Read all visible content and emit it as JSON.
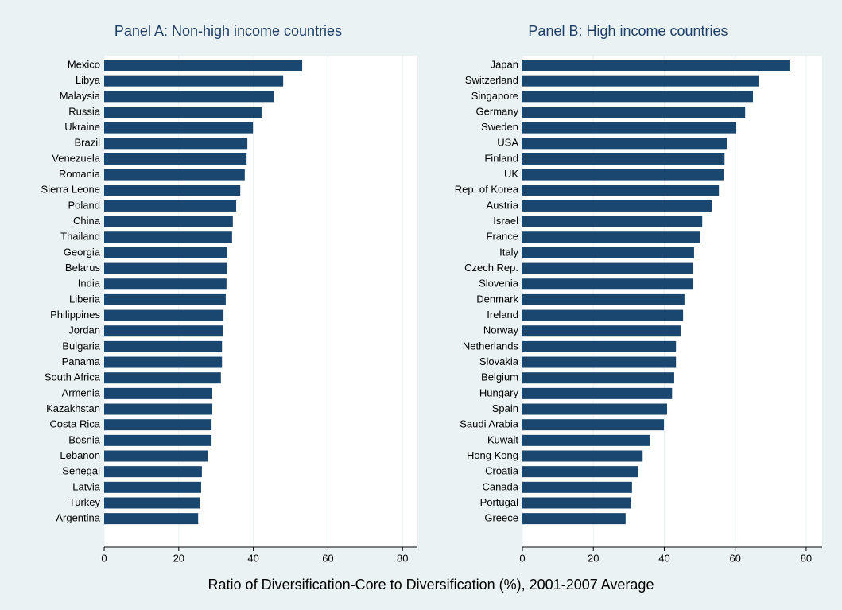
{
  "chart_data": [
    {
      "type": "bar",
      "orientation": "horizontal",
      "title": "Panel A: Non-high income countries",
      "categories": [
        "Mexico",
        "Libya",
        "Malaysia",
        "Russia",
        "Ukraine",
        "Brazil",
        "Venezuela",
        "Romania",
        "Sierra Leone",
        "Poland",
        "China",
        "Thailand",
        "Georgia",
        "Belarus",
        "India",
        "Liberia",
        "Philippines",
        "Jordan",
        "Bulgaria",
        "Panama",
        "South Africa",
        "Armenia",
        "Kazakhstan",
        "Costa Rica",
        "Bosnia",
        "Lebanon",
        "Senegal",
        "Latvia",
        "Turkey",
        "Argentina"
      ],
      "values": [
        53.1,
        48.0,
        45.6,
        42.2,
        39.9,
        38.4,
        38.2,
        37.7,
        36.5,
        35.4,
        34.5,
        34.3,
        33.0,
        33.0,
        32.8,
        32.6,
        32.0,
        31.8,
        31.6,
        31.6,
        31.3,
        29.0,
        29.0,
        28.8,
        28.8,
        27.9,
        26.2,
        26.0,
        25.8,
        25.2
      ],
      "color": "#1a476f",
      "xlim": [
        0,
        84
      ],
      "xticks": [
        0,
        20,
        40,
        60,
        80
      ],
      "grid": true
    },
    {
      "type": "bar",
      "orientation": "horizontal",
      "title": "Panel B: High income countries",
      "categories": [
        "Japan",
        "Switzerland",
        "Singapore",
        "Germany",
        "Sweden",
        "USA",
        "Finland",
        "UK",
        "Rep. of Korea",
        "Austria",
        "Israel",
        "France",
        "Italy",
        "Czech Rep.",
        "Slovenia",
        "Denmark",
        "Ireland",
        "Norway",
        "Netherlands",
        "Slovakia",
        "Belgium",
        "Hungary",
        "Spain",
        "Saudi Arabia",
        "Kuwait",
        "Hong Kong",
        "Croatia",
        "Canada",
        "Portugal",
        "Greece"
      ],
      "values": [
        75.3,
        66.6,
        65.0,
        62.8,
        60.3,
        57.6,
        57.0,
        56.7,
        55.4,
        53.4,
        50.7,
        50.2,
        48.4,
        48.2,
        48.2,
        45.7,
        45.3,
        44.6,
        43.3,
        43.3,
        42.8,
        42.2,
        40.8,
        39.9,
        35.9,
        33.9,
        32.7,
        30.9,
        30.7,
        29.1
      ],
      "color": "#1a476f",
      "xlim": [
        0,
        84.5
      ],
      "xticks": [
        0,
        20,
        40,
        60,
        80
      ],
      "grid": true
    }
  ],
  "xlabel": "Ratio of Diversification-Core to Diversification (%), 2001-2007 Average"
}
